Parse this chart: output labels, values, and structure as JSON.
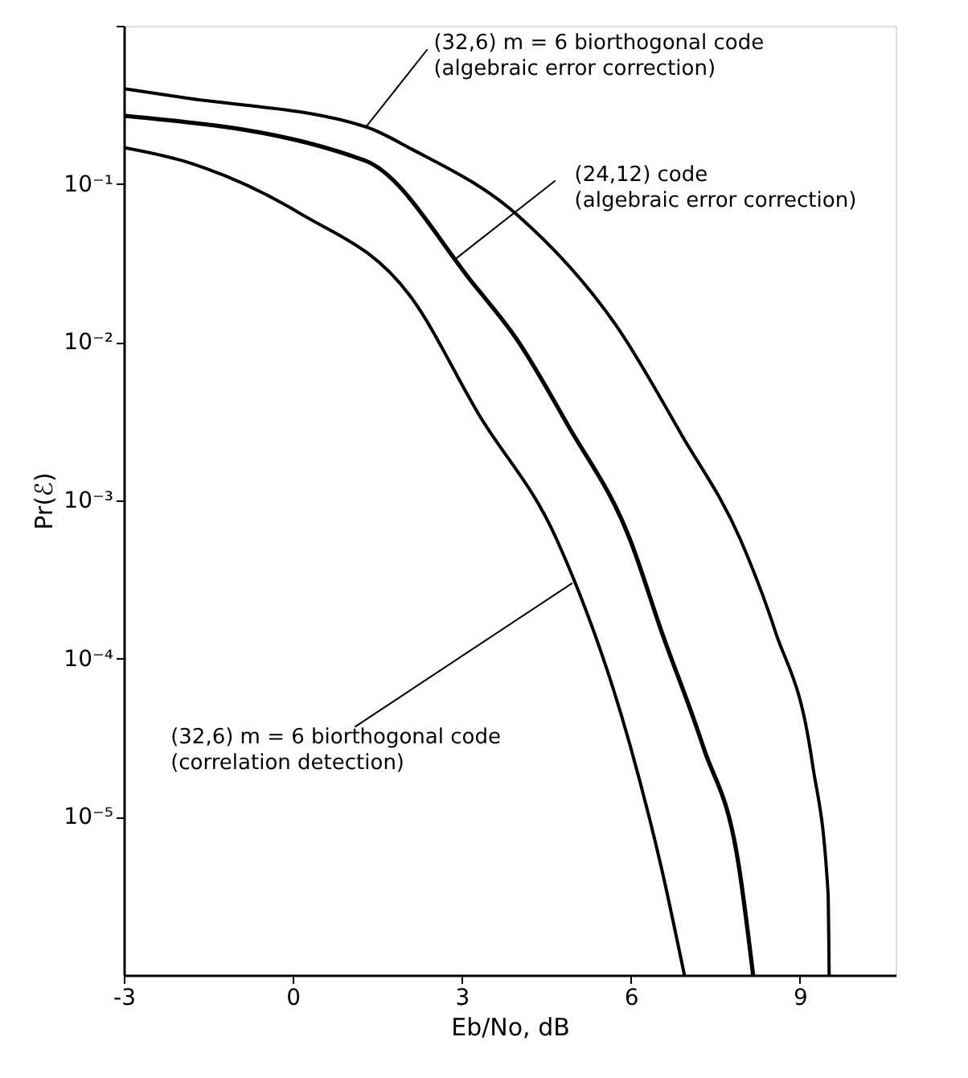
{
  "chart_data": {
    "type": "line",
    "xlabel": "Eb/No, dB",
    "ylabel": "Pr(ℰ)",
    "log": "y",
    "xlim": [
      -3,
      10.7
    ],
    "xticks": [
      -3,
      0,
      3,
      6,
      9
    ],
    "ylim": [
      1e-06,
      1
    ],
    "yticks": [
      {
        "value": 1,
        "label": null
      },
      {
        "value": 0.1,
        "label": "10⁻¹"
      },
      {
        "value": 0.01,
        "label": "10⁻²"
      },
      {
        "value": 0.001,
        "label": "10⁻³"
      },
      {
        "value": 0.0001,
        "label": "10⁻⁴"
      },
      {
        "value": 1e-05,
        "label": "10⁻⁵"
      }
    ],
    "grid": false,
    "marker": "none",
    "line_style": "solid",
    "series": [
      {
        "color": "#000000",
        "x": [
          -3,
          -1.9,
          1.29,
          2.11,
          4.0,
          5.79,
          6.9,
          7.95,
          8.56,
          9.22,
          9.5,
          9.52
        ],
        "values": [
          0.4,
          0.35,
          0.23,
          0.166,
          0.063,
          0.012,
          0.0026,
          0.00056,
          0.00015,
          2.2e-05,
          3.3e-06,
          1e-06
        ]
      },
      {
        "color": "#000000",
        "x": [
          -3,
          1.29,
          3.22,
          3.97,
          4.88,
          5.99,
          6.54,
          7.28,
          7.92,
          8.17
        ],
        "values": [
          0.27,
          0.14,
          0.023,
          0.0105,
          0.003,
          0.00056,
          0.00015,
          2.8e-05,
          4.8e-06,
          1e-06
        ]
      },
      {
        "color": "#000000",
        "x": [
          -3,
          -1.95,
          0.1,
          2.11,
          3.3,
          4.69,
          5.99,
          6.54,
          6.95
        ],
        "values": [
          0.17,
          0.14,
          0.066,
          0.019,
          0.0035,
          0.00056,
          2.8e-05,
          4.8e-06,
          1e-06
        ]
      }
    ],
    "annotations": [
      {
        "text": "(32,6) m = 6 biorthogonal code\n(algebraic error correction)",
        "x": 1.3,
        "y": 0.23
      },
      {
        "text": "(24,12) code\n(algebraic error correction)",
        "x": 2.86,
        "y": 0.033
      },
      {
        "text": "(32,6) m = 6 biorthogonal code\n(correlation detection)",
        "x": 4.96,
        "y": 0.0003
      }
    ]
  }
}
